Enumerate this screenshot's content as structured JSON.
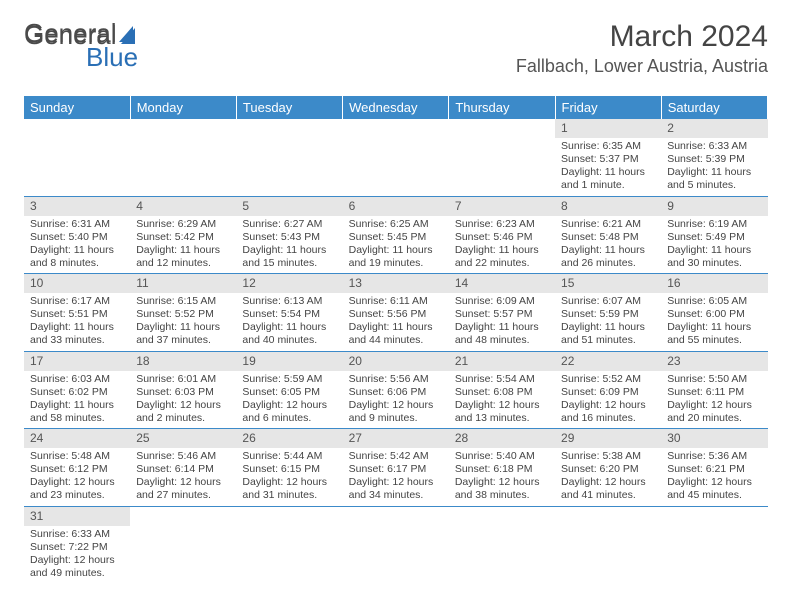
{
  "brand": {
    "part1": "General",
    "part2": "Blue"
  },
  "title": "March 2024",
  "location": "Fallbach, Lower Austria, Austria",
  "weekday_headers": [
    "Sunday",
    "Monday",
    "Tuesday",
    "Wednesday",
    "Thursday",
    "Friday",
    "Saturday"
  ],
  "colors": {
    "header_bg": "#3c8ac9",
    "header_text": "#ffffff",
    "daynum_bg": "#e6e6e6",
    "divider": "#3c8ac9",
    "brand_blue": "#2a6fb5",
    "text": "#444444"
  },
  "weeks": [
    [
      null,
      null,
      null,
      null,
      null,
      {
        "day": "1",
        "sunrise": "Sunrise: 6:35 AM",
        "sunset": "Sunset: 5:37 PM",
        "daylight1": "Daylight: 11 hours",
        "daylight2": "and 1 minute."
      },
      {
        "day": "2",
        "sunrise": "Sunrise: 6:33 AM",
        "sunset": "Sunset: 5:39 PM",
        "daylight1": "Daylight: 11 hours",
        "daylight2": "and 5 minutes."
      }
    ],
    [
      {
        "day": "3",
        "sunrise": "Sunrise: 6:31 AM",
        "sunset": "Sunset: 5:40 PM",
        "daylight1": "Daylight: 11 hours",
        "daylight2": "and 8 minutes."
      },
      {
        "day": "4",
        "sunrise": "Sunrise: 6:29 AM",
        "sunset": "Sunset: 5:42 PM",
        "daylight1": "Daylight: 11 hours",
        "daylight2": "and 12 minutes."
      },
      {
        "day": "5",
        "sunrise": "Sunrise: 6:27 AM",
        "sunset": "Sunset: 5:43 PM",
        "daylight1": "Daylight: 11 hours",
        "daylight2": "and 15 minutes."
      },
      {
        "day": "6",
        "sunrise": "Sunrise: 6:25 AM",
        "sunset": "Sunset: 5:45 PM",
        "daylight1": "Daylight: 11 hours",
        "daylight2": "and 19 minutes."
      },
      {
        "day": "7",
        "sunrise": "Sunrise: 6:23 AM",
        "sunset": "Sunset: 5:46 PM",
        "daylight1": "Daylight: 11 hours",
        "daylight2": "and 22 minutes."
      },
      {
        "day": "8",
        "sunrise": "Sunrise: 6:21 AM",
        "sunset": "Sunset: 5:48 PM",
        "daylight1": "Daylight: 11 hours",
        "daylight2": "and 26 minutes."
      },
      {
        "day": "9",
        "sunrise": "Sunrise: 6:19 AM",
        "sunset": "Sunset: 5:49 PM",
        "daylight1": "Daylight: 11 hours",
        "daylight2": "and 30 minutes."
      }
    ],
    [
      {
        "day": "10",
        "sunrise": "Sunrise: 6:17 AM",
        "sunset": "Sunset: 5:51 PM",
        "daylight1": "Daylight: 11 hours",
        "daylight2": "and 33 minutes."
      },
      {
        "day": "11",
        "sunrise": "Sunrise: 6:15 AM",
        "sunset": "Sunset: 5:52 PM",
        "daylight1": "Daylight: 11 hours",
        "daylight2": "and 37 minutes."
      },
      {
        "day": "12",
        "sunrise": "Sunrise: 6:13 AM",
        "sunset": "Sunset: 5:54 PM",
        "daylight1": "Daylight: 11 hours",
        "daylight2": "and 40 minutes."
      },
      {
        "day": "13",
        "sunrise": "Sunrise: 6:11 AM",
        "sunset": "Sunset: 5:56 PM",
        "daylight1": "Daylight: 11 hours",
        "daylight2": "and 44 minutes."
      },
      {
        "day": "14",
        "sunrise": "Sunrise: 6:09 AM",
        "sunset": "Sunset: 5:57 PM",
        "daylight1": "Daylight: 11 hours",
        "daylight2": "and 48 minutes."
      },
      {
        "day": "15",
        "sunrise": "Sunrise: 6:07 AM",
        "sunset": "Sunset: 5:59 PM",
        "daylight1": "Daylight: 11 hours",
        "daylight2": "and 51 minutes."
      },
      {
        "day": "16",
        "sunrise": "Sunrise: 6:05 AM",
        "sunset": "Sunset: 6:00 PM",
        "daylight1": "Daylight: 11 hours",
        "daylight2": "and 55 minutes."
      }
    ],
    [
      {
        "day": "17",
        "sunrise": "Sunrise: 6:03 AM",
        "sunset": "Sunset: 6:02 PM",
        "daylight1": "Daylight: 11 hours",
        "daylight2": "and 58 minutes."
      },
      {
        "day": "18",
        "sunrise": "Sunrise: 6:01 AM",
        "sunset": "Sunset: 6:03 PM",
        "daylight1": "Daylight: 12 hours",
        "daylight2": "and 2 minutes."
      },
      {
        "day": "19",
        "sunrise": "Sunrise: 5:59 AM",
        "sunset": "Sunset: 6:05 PM",
        "daylight1": "Daylight: 12 hours",
        "daylight2": "and 6 minutes."
      },
      {
        "day": "20",
        "sunrise": "Sunrise: 5:56 AM",
        "sunset": "Sunset: 6:06 PM",
        "daylight1": "Daylight: 12 hours",
        "daylight2": "and 9 minutes."
      },
      {
        "day": "21",
        "sunrise": "Sunrise: 5:54 AM",
        "sunset": "Sunset: 6:08 PM",
        "daylight1": "Daylight: 12 hours",
        "daylight2": "and 13 minutes."
      },
      {
        "day": "22",
        "sunrise": "Sunrise: 5:52 AM",
        "sunset": "Sunset: 6:09 PM",
        "daylight1": "Daylight: 12 hours",
        "daylight2": "and 16 minutes."
      },
      {
        "day": "23",
        "sunrise": "Sunrise: 5:50 AM",
        "sunset": "Sunset: 6:11 PM",
        "daylight1": "Daylight: 12 hours",
        "daylight2": "and 20 minutes."
      }
    ],
    [
      {
        "day": "24",
        "sunrise": "Sunrise: 5:48 AM",
        "sunset": "Sunset: 6:12 PM",
        "daylight1": "Daylight: 12 hours",
        "daylight2": "and 23 minutes."
      },
      {
        "day": "25",
        "sunrise": "Sunrise: 5:46 AM",
        "sunset": "Sunset: 6:14 PM",
        "daylight1": "Daylight: 12 hours",
        "daylight2": "and 27 minutes."
      },
      {
        "day": "26",
        "sunrise": "Sunrise: 5:44 AM",
        "sunset": "Sunset: 6:15 PM",
        "daylight1": "Daylight: 12 hours",
        "daylight2": "and 31 minutes."
      },
      {
        "day": "27",
        "sunrise": "Sunrise: 5:42 AM",
        "sunset": "Sunset: 6:17 PM",
        "daylight1": "Daylight: 12 hours",
        "daylight2": "and 34 minutes."
      },
      {
        "day": "28",
        "sunrise": "Sunrise: 5:40 AM",
        "sunset": "Sunset: 6:18 PM",
        "daylight1": "Daylight: 12 hours",
        "daylight2": "and 38 minutes."
      },
      {
        "day": "29",
        "sunrise": "Sunrise: 5:38 AM",
        "sunset": "Sunset: 6:20 PM",
        "daylight1": "Daylight: 12 hours",
        "daylight2": "and 41 minutes."
      },
      {
        "day": "30",
        "sunrise": "Sunrise: 5:36 AM",
        "sunset": "Sunset: 6:21 PM",
        "daylight1": "Daylight: 12 hours",
        "daylight2": "and 45 minutes."
      }
    ],
    [
      {
        "day": "31",
        "sunrise": "Sunrise: 6:33 AM",
        "sunset": "Sunset: 7:22 PM",
        "daylight1": "Daylight: 12 hours",
        "daylight2": "and 49 minutes."
      },
      null,
      null,
      null,
      null,
      null,
      null
    ]
  ]
}
